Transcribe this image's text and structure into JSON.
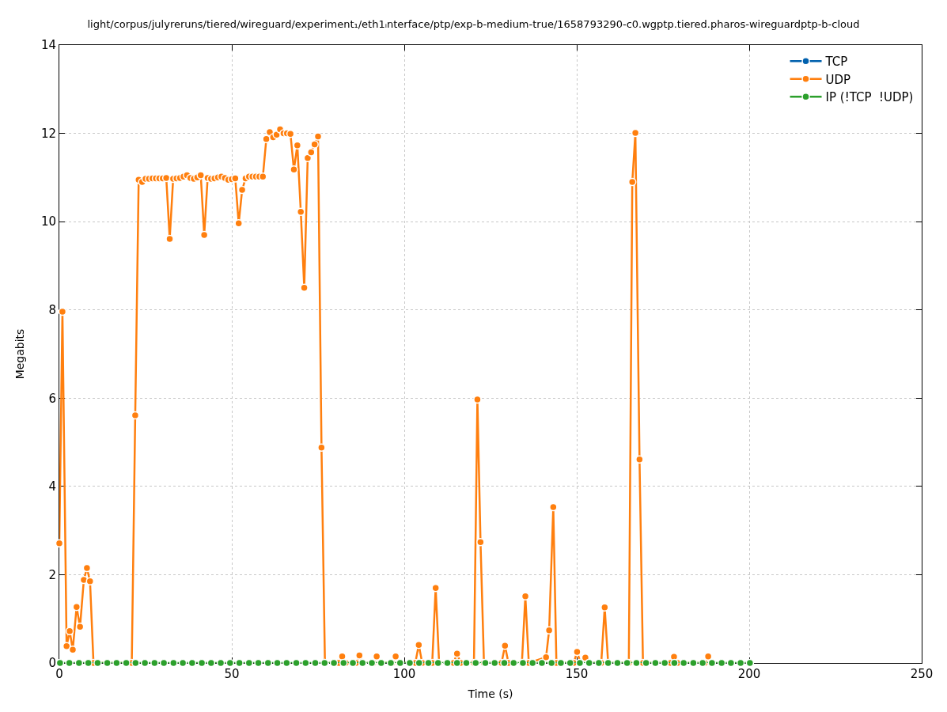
{
  "chart_data": {
    "type": "line",
    "title": "light/corpus/julyreruns/tiered/wireguard/experiment₁/eth1ᵢnterface/ptp/exp-b-medium-true/1658793290-c0.wgptp.tiered.pharos-wireguardptp-b-cloud",
    "xlabel": "Time (s)",
    "ylabel": "Megabits",
    "xlim": [
      0,
      250
    ],
    "xticks": [
      0,
      50,
      100,
      150,
      200,
      250
    ],
    "ylim": [
      0,
      14
    ],
    "yticks": [
      0,
      2,
      4,
      6,
      8,
      10,
      12,
      14
    ],
    "grid": true,
    "legend": "top right",
    "marker": "circle",
    "line_style": "solid",
    "series": [
      {
        "name": "TCP",
        "color": "#0060ad"
      },
      {
        "name": "UDP",
        "color": "#ff7f0e",
        "x": [
          0,
          0.9,
          2.1,
          3,
          3.9,
          5,
          6,
          7.1,
          8,
          8.9,
          9.9,
          21,
          22,
          23,
          24,
          25,
          26,
          27,
          28,
          29,
          30,
          31,
          32,
          33,
          34,
          35,
          36,
          37,
          38,
          39,
          40,
          41,
          42,
          43,
          44,
          45,
          46,
          47,
          48,
          49,
          50,
          51,
          52,
          53,
          54,
          55,
          56,
          57,
          58,
          59,
          60,
          61,
          62,
          63,
          64,
          65,
          66,
          67,
          68,
          69,
          70,
          71,
          72,
          73,
          74,
          75,
          76,
          77,
          81,
          82,
          83,
          86,
          87,
          88,
          91,
          92,
          93,
          96.5,
          97.5,
          98.5,
          103.2,
          104.2,
          105.2,
          108.1,
          109.1,
          110.1,
          114.3,
          115.3,
          116.3,
          120.2,
          121.2,
          122.1,
          123.1,
          128.2,
          129.2,
          130.2,
          134.1,
          135.1,
          136.1,
          141.1,
          142,
          143.2,
          144.1,
          149.1,
          150.1,
          151.1,
          152.5,
          153.5,
          157.1,
          158.1,
          159.1,
          165.1,
          166.1,
          167,
          168.2,
          169.2,
          177.2,
          178.2,
          179.2,
          187.1,
          188.1,
          189.1
        ],
        "values": [
          2.71,
          7.96,
          0.38,
          0.72,
          0.3,
          1.27,
          0.82,
          1.88,
          2.15,
          1.85,
          0,
          0,
          5.61,
          10.95,
          10.9,
          10.97,
          10.97,
          10.98,
          10.98,
          10.98,
          10.98,
          10.99,
          9.61,
          10.97,
          10.98,
          10.99,
          11.02,
          11.05,
          10.99,
          10.97,
          11,
          11.05,
          9.7,
          10.99,
          10.97,
          10.98,
          11,
          11.02,
          10.99,
          10.95,
          10.96,
          10.98,
          9.96,
          10.72,
          10.98,
          11.02,
          11.02,
          11.02,
          11.02,
          11.02,
          11.87,
          12.03,
          11.91,
          11.97,
          12.09,
          12,
          12,
          11.99,
          11.18,
          11.73,
          10.22,
          8.5,
          11.44,
          11.57,
          11.75,
          11.93,
          4.88,
          0,
          0,
          0.15,
          0,
          0,
          0.17,
          0,
          0,
          0.15,
          0,
          0,
          0.15,
          0,
          0,
          0.41,
          0,
          0,
          1.7,
          0,
          0,
          0.21,
          0,
          0,
          5.97,
          2.74,
          0,
          0,
          0.39,
          0,
          0,
          1.51,
          0,
          0.13,
          0.74,
          3.53,
          0,
          0,
          0.25,
          0,
          0.12,
          0,
          0,
          1.26,
          0,
          0,
          10.9,
          12.01,
          4.61,
          0,
          0,
          0.14,
          0,
          0,
          0.15,
          0
        ]
      },
      {
        "name": "IP (!TCP  !UDP)",
        "color": "#2ca02c",
        "x": [
          0.2,
          2.9,
          5.7,
          8.4,
          11.1,
          13.9,
          16.6,
          19.4,
          22.1,
          24.8,
          27.6,
          30.3,
          33.1,
          35.8,
          38.5,
          41.3,
          44,
          46.8,
          49.5,
          52.2,
          55,
          57.7,
          60.5,
          63.2,
          65.9,
          68.7,
          71.4,
          74.2,
          76.9,
          79.6,
          82.4,
          85.1,
          87.9,
          90.6,
          93.3,
          96.1,
          98.8,
          101.6,
          104.3,
          107,
          109.8,
          112.5,
          115.3,
          118,
          120.7,
          123.5,
          126.2,
          129,
          131.7,
          134.4,
          137.2,
          139.9,
          142.7,
          145.4,
          148.1,
          150.9,
          153.6,
          156.4,
          159.1,
          161.8,
          164.6,
          167.3,
          170.1,
          172.8,
          175.5,
          178.3,
          181,
          183.8,
          186.5,
          189.2,
          192,
          194.7,
          197.5,
          200.2
        ],
        "values": [
          0,
          0,
          0,
          0,
          0,
          0,
          0,
          0,
          0,
          0,
          0,
          0,
          0,
          0,
          0,
          0,
          0,
          0,
          0,
          0,
          0,
          0,
          0,
          0,
          0,
          0,
          0,
          0,
          0,
          0,
          0,
          0,
          0,
          0,
          0,
          0,
          0,
          0,
          0,
          0,
          0,
          0,
          0,
          0,
          0,
          0,
          0,
          0,
          0,
          0,
          0,
          0,
          0,
          0,
          0,
          0,
          0,
          0,
          0,
          0,
          0,
          0,
          0,
          0,
          0,
          0,
          0,
          0,
          0,
          0,
          0,
          0,
          0,
          0
        ]
      }
    ]
  }
}
